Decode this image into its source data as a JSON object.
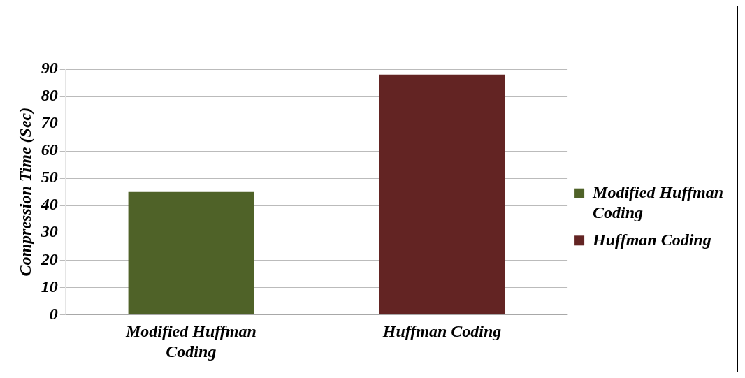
{
  "chart_data": {
    "type": "bar",
    "ylabel": "Compression Time (Sec)",
    "categories": [
      "Modified Huffman Coding",
      "Huffman Coding"
    ],
    "series": [
      {
        "name": "Modified Huffman Coding",
        "color": "#4f6228",
        "values": [
          45,
          null
        ]
      },
      {
        "name": "Huffman Coding",
        "color": "#632423",
        "values": [
          null,
          88
        ]
      }
    ],
    "ylim": [
      0,
      90
    ],
    "yticks": [
      0,
      10,
      20,
      30,
      40,
      50,
      60,
      70,
      80,
      90
    ],
    "grid": "y",
    "legend": "right"
  }
}
